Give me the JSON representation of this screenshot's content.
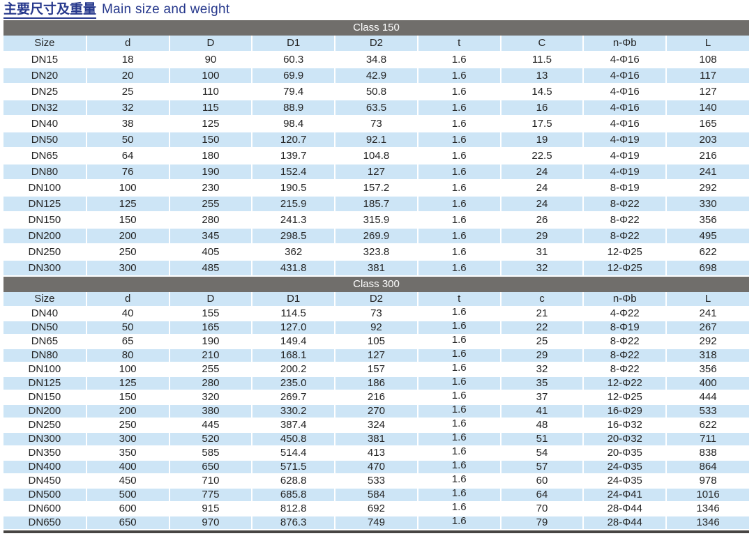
{
  "page_title": {
    "zh": "主要尺寸及重量",
    "en": "Main size and weight"
  },
  "colors": {
    "title_blue": "#26388c",
    "section_bar_gray": "#706e6b",
    "row_stripe_blue": "#cde5f6",
    "text_dark": "#242424",
    "bottom_border_dark": "#474543"
  },
  "sections": [
    {
      "class_label": "Class 150",
      "columns": [
        "Size",
        "d",
        "D",
        "D1",
        "D2",
        "t",
        "C",
        "n-Φb",
        "L"
      ],
      "rows": [
        [
          "DN15",
          "18",
          "90",
          "60.3",
          "34.8",
          "1.6",
          "11.5",
          "4-Φ16",
          "108"
        ],
        [
          "DN20",
          "20",
          "100",
          "69.9",
          "42.9",
          "1.6",
          "13",
          "4-Φ16",
          "117"
        ],
        [
          "DN25",
          "25",
          "110",
          "79.4",
          "50.8",
          "1.6",
          "14.5",
          "4-Φ16",
          "127"
        ],
        [
          "DN32",
          "32",
          "115",
          "88.9",
          "63.5",
          "1.6",
          "16",
          "4-Φ16",
          "140"
        ],
        [
          "DN40",
          "38",
          "125",
          "98.4",
          "73",
          "1.6",
          "17.5",
          "4-Φ16",
          "165"
        ],
        [
          "DN50",
          "50",
          "150",
          "120.7",
          "92.1",
          "1.6",
          "19",
          "4-Φ19",
          "203"
        ],
        [
          "DN65",
          "64",
          "180",
          "139.7",
          "104.8",
          "1.6",
          "22.5",
          "4-Φ19",
          "216"
        ],
        [
          "DN80",
          "76",
          "190",
          "152.4",
          "127",
          "1.6",
          "24",
          "4-Φ19",
          "241"
        ],
        [
          "DN100",
          "100",
          "230",
          "190.5",
          "157.2",
          "1.6",
          "24",
          "8-Φ19",
          "292"
        ],
        [
          "DN125",
          "125",
          "255",
          "215.9",
          "185.7",
          "1.6",
          "24",
          "8-Φ22",
          "330"
        ],
        [
          "DN150",
          "150",
          "280",
          "241.3",
          "315.9",
          "1.6",
          "26",
          "8-Φ22",
          "356"
        ],
        [
          "DN200",
          "200",
          "345",
          "298.5",
          "269.9",
          "1.6",
          "29",
          "8-Φ22",
          "495"
        ],
        [
          "DN250",
          "250",
          "405",
          "362",
          "323.8",
          "1.6",
          "31",
          "12-Φ25",
          "622"
        ],
        [
          "DN300",
          "300",
          "485",
          "431.8",
          "381",
          "1.6",
          "32",
          "12-Φ25",
          "698"
        ]
      ]
    },
    {
      "class_label": "Class 300",
      "columns": [
        "Size",
        "d",
        "D",
        "D1",
        "D2",
        "t",
        "c",
        "n-Φb",
        "L"
      ],
      "rows": [
        [
          "DN40",
          "40",
          "155",
          "114.5",
          "73",
          "1.6",
          "21",
          "4-Φ22",
          "241"
        ],
        [
          "DN50",
          "50",
          "165",
          "127.0",
          "92",
          "1.6",
          "22",
          "8-Φ19",
          "267"
        ],
        [
          "DN65",
          "65",
          "190",
          "149.4",
          "105",
          "1.6",
          "25",
          "8-Φ22",
          "292"
        ],
        [
          "DN80",
          "80",
          "210",
          "168.1",
          "127",
          "1.6",
          "29",
          "8-Φ22",
          "318"
        ],
        [
          "DN100",
          "100",
          "255",
          "200.2",
          "157",
          "1.6",
          "32",
          "8-Φ22",
          "356"
        ],
        [
          "DN125",
          "125",
          "280",
          "235.0",
          "186",
          "1.6",
          "35",
          "12-Φ22",
          "400"
        ],
        [
          "DN150",
          "150",
          "320",
          "269.7",
          "216",
          "1.6",
          "37",
          "12-Φ25",
          "444"
        ],
        [
          "DN200",
          "200",
          "380",
          "330.2",
          "270",
          "1.6",
          "41",
          "16-Φ29",
          "533"
        ],
        [
          "DN250",
          "250",
          "445",
          "387.4",
          "324",
          "1.6",
          "48",
          "16-Φ32",
          "622"
        ],
        [
          "DN300",
          "300",
          "520",
          "450.8",
          "381",
          "1.6",
          "51",
          "20-Φ32",
          "711"
        ],
        [
          "DN350",
          "350",
          "585",
          "514.4",
          "413",
          "1.6",
          "54",
          "20-Φ35",
          "838"
        ],
        [
          "DN400",
          "400",
          "650",
          "571.5",
          "470",
          "1.6",
          "57",
          "24-Φ35",
          "864"
        ],
        [
          "DN450",
          "450",
          "710",
          "628.8",
          "533",
          "1.6",
          "60",
          "24-Φ35",
          "978"
        ],
        [
          "DN500",
          "500",
          "775",
          "685.8",
          "584",
          "1.6",
          "64",
          "24-Φ41",
          "1016"
        ],
        [
          "DN600",
          "600",
          "915",
          "812.8",
          "692",
          "1.6",
          "70",
          "28-Φ44",
          "1346"
        ],
        [
          "DN650",
          "650",
          "970",
          "876.3",
          "749",
          "1.6",
          "79",
          "28-Φ44",
          "1346"
        ]
      ]
    }
  ]
}
